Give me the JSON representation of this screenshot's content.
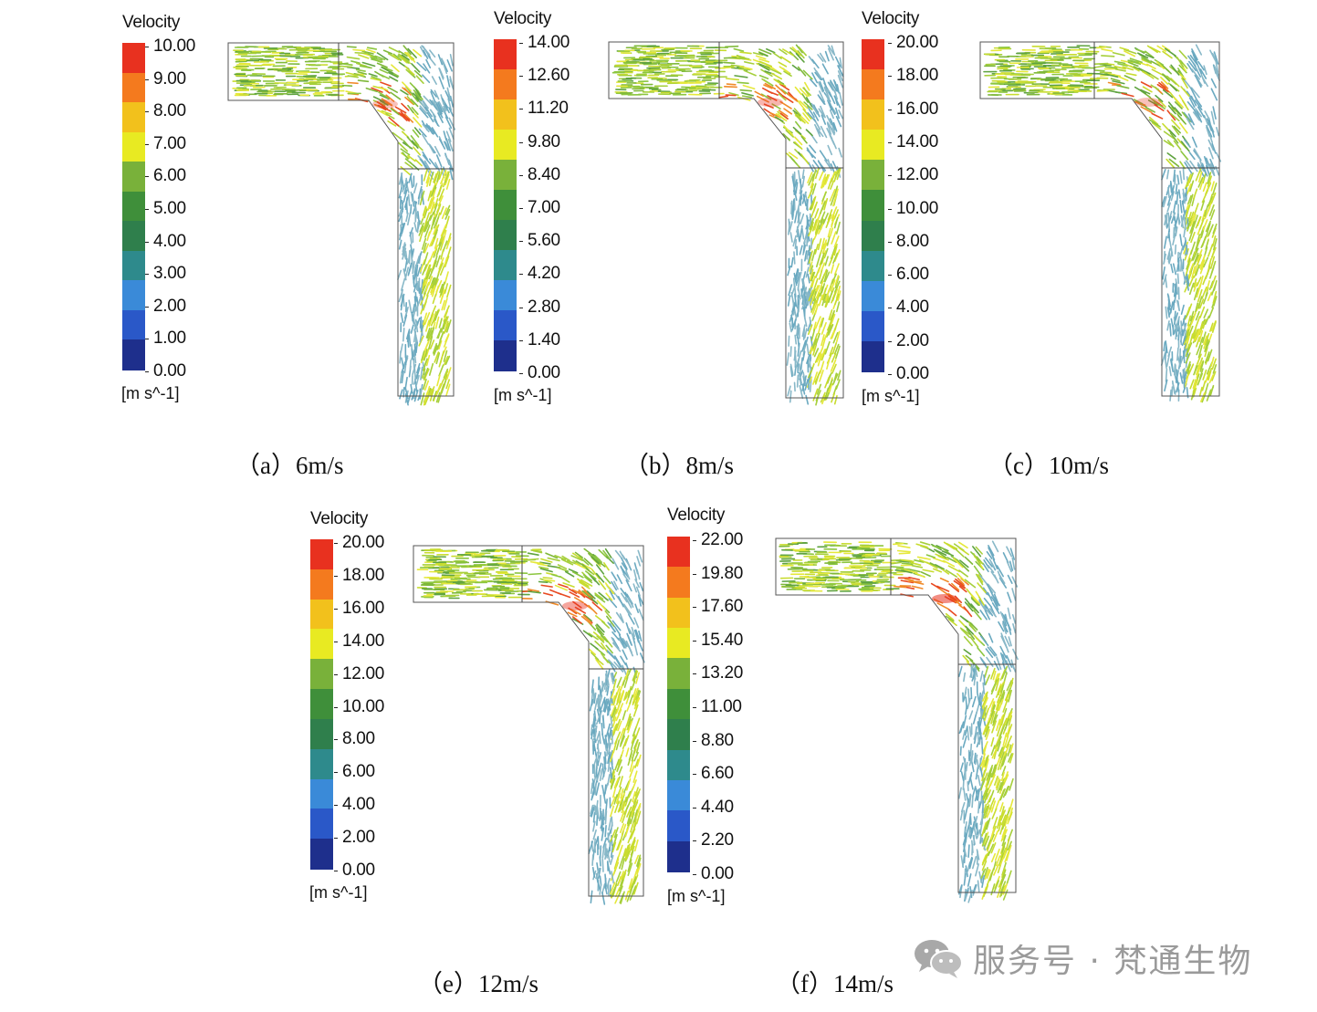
{
  "colormap": [
    "#1e2f8c",
    "#2a58c8",
    "#3a8ad8",
    "#2e8a8c",
    "#2f7f4c",
    "#3f8f3a",
    "#79b13a",
    "#e8ea22",
    "#f2c11c",
    "#f47a1e",
    "#e8311f"
  ],
  "panels": [
    {
      "id": "a",
      "legend_title": "Velocity",
      "unit": "[m s^-1]",
      "caption": "（a）6m/s",
      "ticks": [
        "10.00",
        "9.00",
        "8.00",
        "7.00",
        "6.00",
        "5.00",
        "4.00",
        "3.00",
        "2.00",
        "1.00",
        "0.00"
      ]
    },
    {
      "id": "b",
      "legend_title": "Velocity",
      "unit": "[m s^-1]",
      "caption": "（b）8m/s",
      "ticks": [
        "14.00",
        "12.60",
        "11.20",
        "9.80",
        "8.40",
        "7.00",
        "5.60",
        "4.20",
        "2.80",
        "1.40",
        "0.00"
      ]
    },
    {
      "id": "c",
      "legend_title": "Velocity",
      "unit": "[m s^-1]",
      "caption": "（c）10m/s",
      "ticks": [
        "20.00",
        "18.00",
        "16.00",
        "14.00",
        "12.00",
        "10.00",
        "8.00",
        "6.00",
        "4.00",
        "2.00",
        "0.00"
      ]
    },
    {
      "id": "e",
      "legend_title": "Velocity",
      "unit": "[m s^-1]",
      "caption": "（e）12m/s",
      "ticks": [
        "20.00",
        "18.00",
        "16.00",
        "14.00",
        "12.00",
        "10.00",
        "8.00",
        "6.00",
        "4.00",
        "2.00",
        "0.00"
      ]
    },
    {
      "id": "f",
      "legend_title": "Velocity",
      "unit": "[m s^-1]",
      "caption": "（f）14m/s",
      "ticks": [
        "22.00",
        "19.80",
        "17.60",
        "15.40",
        "13.20",
        "11.00",
        "8.80",
        "6.60",
        "4.40",
        "2.20",
        "0.00"
      ]
    }
  ],
  "watermark": {
    "text": "服务号 · 梵通生物",
    "icon": "wechat-icon"
  }
}
